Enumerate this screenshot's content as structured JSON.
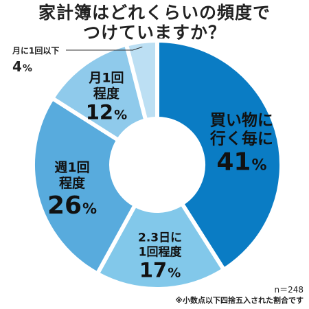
{
  "title": {
    "line1": "家計簿はどれくらいの頻度で",
    "line2": "つけていますか？"
  },
  "chart_data": {
    "type": "pie",
    "donut": true,
    "unit": "%",
    "categories": [
      "買い物に行く毎に",
      "2.3日に1回程度",
      "週1回程度",
      "月1回程度",
      "月に1回以下"
    ],
    "values": [
      41,
      17,
      26,
      12,
      4
    ],
    "colors": [
      "#0a7cc4",
      "#82c8ea",
      "#58abdd",
      "#8fcaeb",
      "#bcdff3"
    ]
  },
  "labels": [
    {
      "lines": [
        "買い物に",
        "行く毎に"
      ],
      "pct": "41",
      "unit": "%"
    },
    {
      "lines": [
        "2.3日に",
        "1回程度"
      ],
      "pct": "17",
      "unit": "%"
    },
    {
      "lines": [
        "週1回",
        "程度"
      ],
      "pct": "26",
      "unit": "%"
    },
    {
      "lines": [
        "月1回",
        "程度"
      ],
      "pct": "12",
      "unit": "%"
    },
    {
      "lines": [
        "月に1回以下"
      ],
      "pct": "4",
      "unit": "%"
    }
  ],
  "footer": {
    "n": "n＝248",
    "note": "※小数点以下四捨五入された割合です"
  }
}
